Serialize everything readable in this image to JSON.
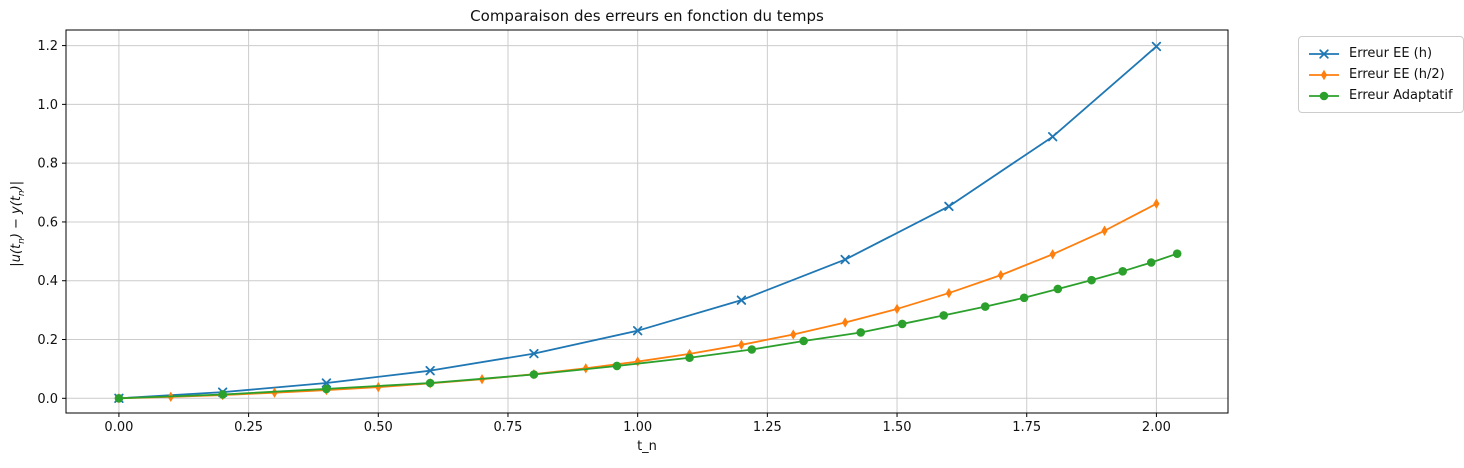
{
  "figure": {
    "title": "Comparaison des erreurs en fonction du temps",
    "xlabel": "t_n",
    "ylabel_parts": {
      "p1": "|u(t",
      "sub1": "n",
      "p2": ") − y(t",
      "sub2": "n",
      "p3": ")|"
    }
  },
  "chart_data": {
    "type": "line",
    "title": "Comparaison des erreurs en fonction du temps",
    "xlabel": "t_n",
    "ylabel": "|u(t_n) - y(t_n)|",
    "xlim": [
      -0.102,
      2.138
    ],
    "ylim": [
      -0.05,
      1.253
    ],
    "xticks": [
      0.0,
      0.25,
      0.5,
      0.75,
      1.0,
      1.25,
      1.5,
      1.75,
      2.0
    ],
    "xtick_labels": [
      "0.00",
      "0.25",
      "0.50",
      "0.75",
      "1.00",
      "1.25",
      "1.50",
      "1.75",
      "2.00"
    ],
    "yticks": [
      0.0,
      0.2,
      0.4,
      0.6,
      0.8,
      1.0,
      1.2
    ],
    "ytick_labels": [
      "0.0",
      "0.2",
      "0.4",
      "0.6",
      "0.8",
      "1.0",
      "1.2"
    ],
    "grid": true,
    "grid_color": "#cccccc",
    "axis_color": "#000000",
    "legend_position": "outside-upper-right",
    "series": [
      {
        "name": "Erreur EE (h)",
        "color": "#1f77b4",
        "marker": "x",
        "x": [
          0.0,
          0.2,
          0.4,
          0.6,
          0.8,
          1.0,
          1.2,
          1.4,
          1.6,
          1.8,
          2.0
        ],
        "y": [
          0.0,
          0.021,
          0.052,
          0.094,
          0.152,
          0.23,
          0.334,
          0.472,
          0.653,
          0.89,
          1.197
        ]
      },
      {
        "name": "Erreur EE (h/2)",
        "color": "#ff7f0e",
        "marker": "thin-diamond",
        "x": [
          0.0,
          0.1,
          0.2,
          0.3,
          0.4,
          0.5,
          0.6,
          0.7,
          0.8,
          0.9,
          1.0,
          1.1,
          1.2,
          1.3,
          1.4,
          1.5,
          1.6,
          1.7,
          1.8,
          1.9,
          2.0
        ],
        "y": [
          0.0,
          0.005,
          0.011,
          0.019,
          0.028,
          0.038,
          0.051,
          0.065,
          0.082,
          0.102,
          0.125,
          0.151,
          0.182,
          0.217,
          0.258,
          0.304,
          0.358,
          0.419,
          0.49,
          0.57,
          0.662
        ]
      },
      {
        "name": "Erreur Adaptatif",
        "color": "#2ca02c",
        "marker": "circle",
        "x": [
          0.0,
          0.2,
          0.4,
          0.6,
          0.8,
          0.96,
          1.1,
          1.22,
          1.32,
          1.43,
          1.51,
          1.59,
          1.67,
          1.745,
          1.81,
          1.875,
          1.935,
          1.99,
          2.04
        ],
        "y": [
          0.0,
          0.013,
          0.032,
          0.052,
          0.081,
          0.11,
          0.138,
          0.166,
          0.195,
          0.224,
          0.253,
          0.282,
          0.312,
          0.342,
          0.372,
          0.402,
          0.432,
          0.462,
          0.492
        ]
      }
    ]
  }
}
